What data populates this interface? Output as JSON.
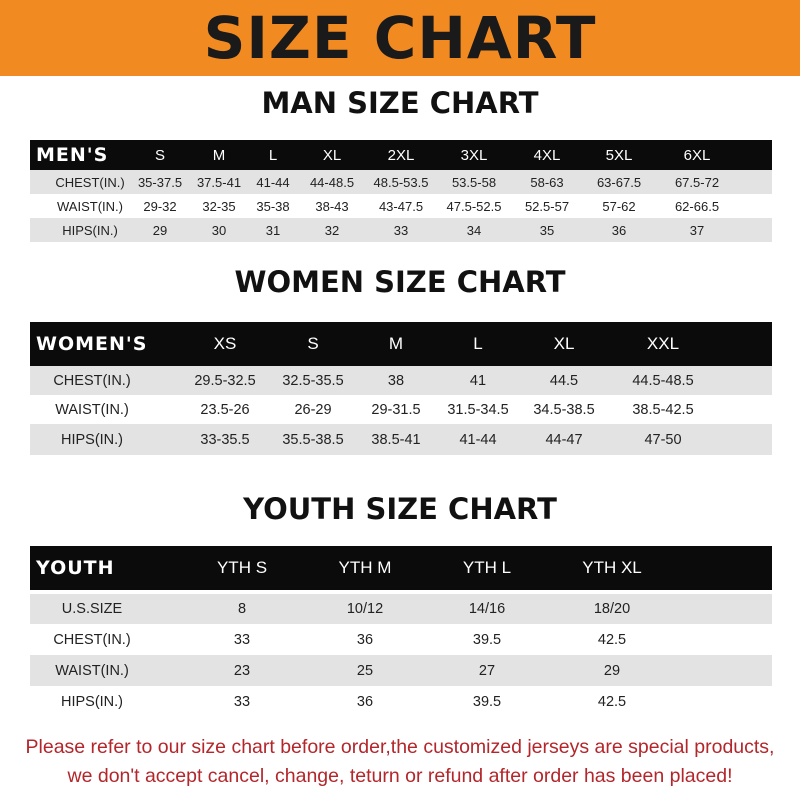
{
  "title": "SIZE CHART",
  "men": {
    "heading": "MAN SIZE CHART",
    "corner": "MEN'S",
    "sizes": [
      "S",
      "M",
      "L",
      "XL",
      "2XL",
      "3XL",
      "4XL",
      "5XL",
      "6XL"
    ],
    "rows": [
      {
        "label": "CHEST(IN.)",
        "values": [
          "35-37.5",
          "37.5-41",
          "41-44",
          "44-48.5",
          "48.5-53.5",
          "53.5-58",
          "58-63",
          "63-67.5",
          "67.5-72"
        ]
      },
      {
        "label": "WAIST(IN.)",
        "values": [
          "29-32",
          "32-35",
          "35-38",
          "38-43",
          "43-47.5",
          "47.5-52.5",
          "52.5-57",
          "57-62",
          "62-66.5"
        ]
      },
      {
        "label": "HIPS(IN.)",
        "values": [
          "29",
          "30",
          "31",
          "32",
          "33",
          "34",
          "35",
          "36",
          "37"
        ]
      }
    ]
  },
  "women": {
    "heading": "WOMEN SIZE CHART",
    "corner": "WOMEN'S",
    "sizes": [
      "XS",
      "S",
      "M",
      "L",
      "XL",
      "XXL"
    ],
    "rows": [
      {
        "label": "CHEST(IN.)",
        "values": [
          "29.5-32.5",
          "32.5-35.5",
          "38",
          "41",
          "44.5",
          "44.5-48.5"
        ]
      },
      {
        "label": "WAIST(IN.)",
        "values": [
          "23.5-26",
          "26-29",
          "29-31.5",
          "31.5-34.5",
          "34.5-38.5",
          "38.5-42.5"
        ]
      },
      {
        "label": "HIPS(IN.)",
        "values": [
          "33-35.5",
          "35.5-38.5",
          "38.5-41",
          "41-44",
          "44-47",
          "47-50"
        ]
      }
    ]
  },
  "youth": {
    "heading": "YOUTH SIZE CHART",
    "corner": "YOUTH",
    "sizes": [
      "YTH S",
      "YTH M",
      "YTH L",
      "YTH XL"
    ],
    "rows": [
      {
        "label": "U.S.SIZE",
        "values": [
          "8",
          "10/12",
          "14/16",
          "18/20"
        ]
      },
      {
        "label": "CHEST(IN.)",
        "values": [
          "33",
          "36",
          "39.5",
          "42.5"
        ]
      },
      {
        "label": "WAIST(IN.)",
        "values": [
          "23",
          "25",
          "27",
          "29"
        ]
      },
      {
        "label": "HIPS(IN.)",
        "values": [
          "33",
          "36",
          "39.5",
          "42.5"
        ]
      }
    ]
  },
  "notice": {
    "line1": "Please refer to our size chart before order,the customized jerseys are special products,",
    "line2": "we don't accept cancel, change, teturn or refund after order has been placed!"
  },
  "colors": {
    "banner": "#f28a22",
    "header_row": "#0b0b0b",
    "stripe": "#e3e3e3",
    "notice": "#b3262b"
  }
}
